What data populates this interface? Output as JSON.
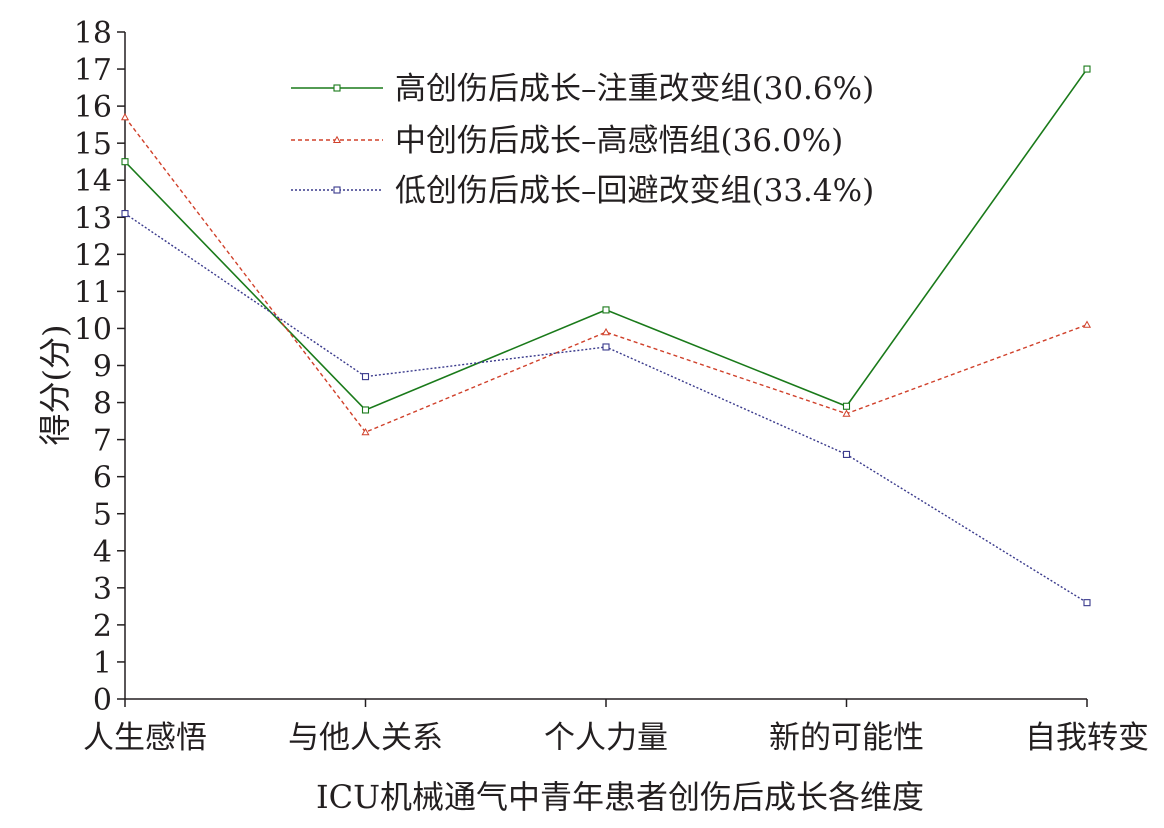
{
  "chart_data": {
    "type": "line",
    "xlabel": "ICU机械通气中青年患者创伤后成长各维度",
    "ylabel": "得分(分)",
    "ylim": [
      0,
      18
    ],
    "yticks": [
      0,
      1,
      2,
      3,
      4,
      5,
      6,
      7,
      8,
      9,
      10,
      11,
      12,
      13,
      14,
      15,
      16,
      17,
      18
    ],
    "categories": [
      "人生感悟",
      "与他人关系",
      "个人力量",
      "新的可能性",
      "自我转变"
    ],
    "grid": false,
    "legend_position": "top-right",
    "series": [
      {
        "name": "高创伤后成长–注重改变组(30.6%)",
        "values": [
          14.5,
          7.8,
          10.5,
          7.9,
          17.0
        ],
        "color": "#1a7a1a",
        "line_style": "solid",
        "marker": "square"
      },
      {
        "name": "中创伤后成长–高感悟组(36.0%)",
        "values": [
          15.7,
          7.2,
          9.9,
          7.7,
          10.1
        ],
        "color": "#d0402a",
        "line_style": "dashed",
        "marker": "triangle"
      },
      {
        "name": "低创伤后成长–回避改变组(33.4%)",
        "values": [
          13.1,
          8.7,
          9.5,
          6.6,
          2.6
        ],
        "color": "#3a3a8c",
        "line_style": "dotted",
        "marker": "square"
      }
    ]
  }
}
